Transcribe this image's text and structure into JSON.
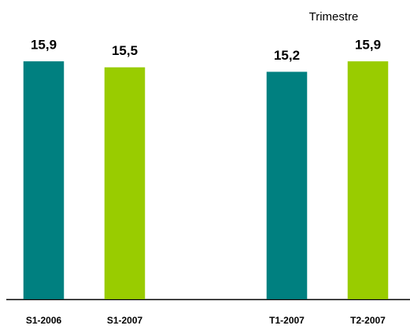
{
  "chart_data": {
    "type": "bar",
    "annotation": "Trimestre",
    "categories": [
      "S1-2006",
      "S1-2007",
      null,
      "T1-2007",
      "T2-2007"
    ],
    "values": [
      15.9,
      15.5,
      null,
      15.2,
      15.9
    ],
    "value_labels": [
      "15,9",
      "15,5",
      null,
      "15,2",
      "15,9"
    ],
    "colors": [
      "#008080",
      "#99cc00",
      null,
      "#008080",
      "#99cc00"
    ],
    "ylim": [
      0,
      20
    ]
  }
}
